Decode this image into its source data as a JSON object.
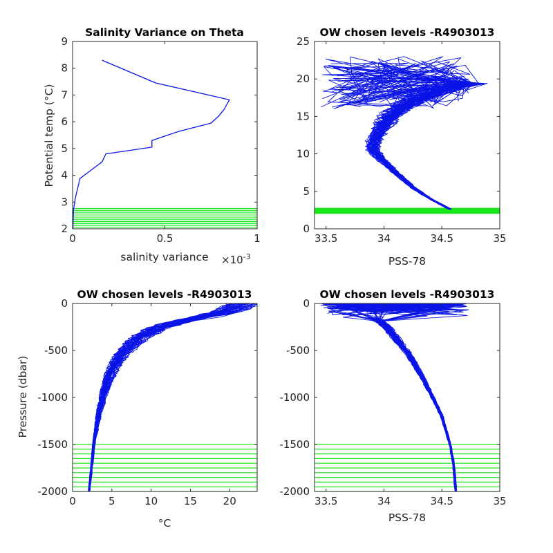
{
  "colors": {
    "profile": "#0a14e6",
    "levels": "#19e619",
    "axis": "#262626"
  },
  "chart_data": [
    {
      "id": "variance",
      "type": "line",
      "title": "Salinity Variance on Theta",
      "xlabel": "salinity variance",
      "xlabel_multiplier": "×10",
      "xlabel_exponent": "-3",
      "ylabel": "Potential temp (°C)",
      "xlim": [
        0,
        1
      ],
      "ylim": [
        2,
        9
      ],
      "x_ticks": [
        0,
        0.5,
        1
      ],
      "x_tick_labels": [
        "0",
        "0.5",
        "1"
      ],
      "y_ticks": [
        2,
        3,
        4,
        5,
        6,
        7,
        8,
        9
      ],
      "y_tick_labels": [
        "2",
        "3",
        "4",
        "5",
        "6",
        "7",
        "8",
        "9"
      ],
      "grid": false,
      "series": [
        {
          "kind": "line",
          "x": [
            0.16,
            0.45,
            0.85,
            0.82,
            0.79,
            0.75,
            0.58,
            0.43,
            0.43,
            0.18,
            0.16,
            0.14,
            0.04,
            0.015,
            0.005,
            0.002
          ],
          "y": [
            8.3,
            7.45,
            6.82,
            6.45,
            6.2,
            5.95,
            5.65,
            5.3,
            5.05,
            4.8,
            4.5,
            4.4,
            3.88,
            3.15,
            2.7,
            2.0
          ]
        }
      ],
      "level_lines": [
        2.06,
        2.13,
        2.2,
        2.27,
        2.34,
        2.41,
        2.48,
        2.55,
        2.62,
        2.69,
        2.76
      ]
    },
    {
      "id": "theta_salinity",
      "type": "line",
      "title": "OW chosen levels -R4903013",
      "xlabel": "PSS-78",
      "ylabel": "",
      "xlim": [
        33.4,
        35
      ],
      "ylim": [
        0,
        25
      ],
      "x_ticks": [
        33.5,
        34,
        34.5,
        35
      ],
      "x_tick_labels": [
        "33.5",
        "34",
        "34.5",
        "35"
      ],
      "y_ticks": [
        0,
        5,
        10,
        15,
        20,
        25
      ],
      "y_tick_labels": [
        "0",
        "5",
        "10",
        "15",
        "20",
        "25"
      ],
      "grid": false,
      "mean_profile": {
        "x": [
          34.57,
          34.4,
          34.25,
          34.1,
          33.98,
          33.9,
          33.92,
          33.98,
          34.05,
          34.15,
          34.3,
          34.45,
          34.6,
          34.72
        ],
        "y": [
          2.6,
          4.0,
          5.5,
          7.5,
          9.2,
          10.5,
          12.0,
          13.5,
          15.0,
          16.3,
          17.4,
          18.3,
          19.0,
          19.4
        ]
      },
      "level_band": [
        2.0,
        2.8
      ]
    },
    {
      "id": "pressure_temperature",
      "type": "line",
      "title": "OW chosen levels -R4903013",
      "xlabel": "°C",
      "ylabel": "Pressure (dbar)",
      "xlim": [
        0,
        23.5
      ],
      "ylim": [
        -2000,
        0
      ],
      "x_ticks": [
        0,
        5,
        10,
        15,
        20
      ],
      "x_tick_labels": [
        "0",
        "5",
        "10",
        "15",
        "20"
      ],
      "y_ticks": [
        -2000,
        -1500,
        -1000,
        -500,
        0
      ],
      "y_tick_labels": [
        "-2000",
        "-1500",
        "-1000",
        "-500",
        "0"
      ],
      "grid": false,
      "mean_profile": {
        "x": [
          2.1,
          2.35,
          2.7,
          3.3,
          4.0,
          5.0,
          6.5,
          8.5,
          11.0,
          13.5,
          16.0,
          18.0,
          20.0,
          22.0
        ],
        "y": [
          -2000,
          -1800,
          -1500,
          -1200,
          -950,
          -720,
          -520,
          -370,
          -260,
          -200,
          -160,
          -120,
          -80,
          0
        ]
      },
      "level_lines": [
        -1500,
        -1550,
        -1600,
        -1650,
        -1700,
        -1750,
        -1800,
        -1850,
        -1900,
        -1950,
        -2000
      ]
    },
    {
      "id": "pressure_salinity",
      "type": "line",
      "title": "OW chosen levels -R4903013",
      "xlabel": "PSS-78",
      "ylabel": "",
      "xlim": [
        33.4,
        35
      ],
      "ylim": [
        -2000,
        0
      ],
      "x_ticks": [
        33.5,
        34,
        34.5,
        35
      ],
      "x_tick_labels": [
        "33.5",
        "34",
        "34.5",
        "35"
      ],
      "y_ticks": [
        -2000,
        -1500,
        -1000,
        -500,
        0
      ],
      "y_tick_labels": [
        "-2000",
        "-1500",
        "-1000",
        "-500",
        "0"
      ],
      "grid": false,
      "mean_profile": {
        "x": [
          34.62,
          34.6,
          34.57,
          34.5,
          34.4,
          34.3,
          34.2,
          34.1,
          34.02,
          33.95,
          33.9
        ],
        "y": [
          -2000,
          -1700,
          -1500,
          -1200,
          -950,
          -720,
          -520,
          -370,
          -250,
          -180,
          -150
        ]
      },
      "surface_spread": {
        "x_min": 33.45,
        "x_max": 34.75,
        "mixed_layer_depth": 150
      },
      "level_lines": [
        -1500,
        -1550,
        -1600,
        -1650,
        -1700,
        -1750,
        -1800,
        -1850,
        -1900,
        -1950,
        -2000
      ]
    }
  ]
}
